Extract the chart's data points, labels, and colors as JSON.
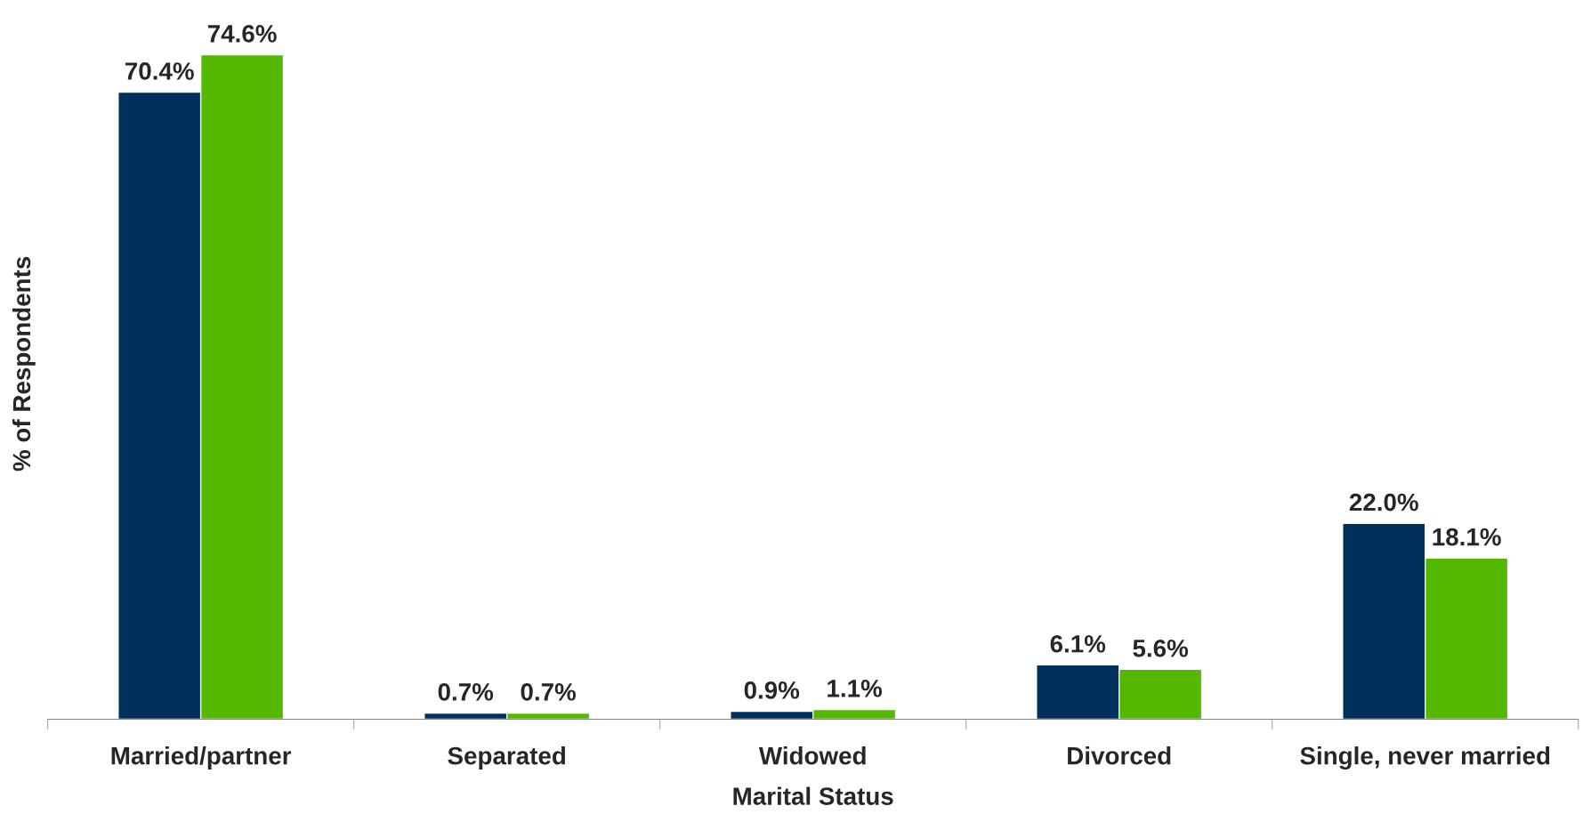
{
  "chart_data": {
    "type": "bar",
    "xlabel": "Marital Status",
    "ylabel": "% of Respondents",
    "categories": [
      "Married/partner",
      "Separated",
      "Widowed",
      "Divorced",
      "Single, never married"
    ],
    "series": [
      {
        "color": "#00305c",
        "values": [
          70.4,
          0.7,
          0.9,
          6.1,
          22.0
        ],
        "value_labels": [
          "70.4%",
          "0.7%",
          "0.9%",
          "6.1%",
          "22.0%"
        ]
      },
      {
        "color": "#55b800",
        "values": [
          74.6,
          0.7,
          1.1,
          5.6,
          18.1
        ],
        "value_labels": [
          "74.6%",
          "0.7%",
          "1.1%",
          "5.6%",
          "18.1%"
        ]
      }
    ],
    "grid": false,
    "legend": false
  }
}
